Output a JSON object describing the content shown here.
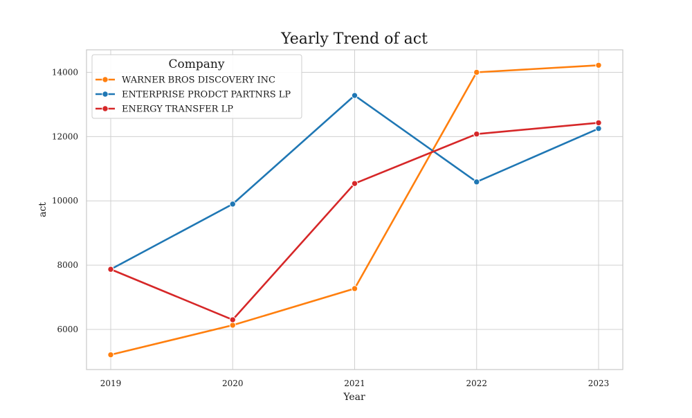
{
  "chart_data": {
    "type": "line",
    "title": "Yearly Trend of act",
    "xlabel": "Year",
    "ylabel": "act",
    "x": [
      "2019",
      "2020",
      "2021",
      "2022",
      "2023"
    ],
    "yticks": [
      6000,
      8000,
      10000,
      12000,
      14000
    ],
    "ylim": [
      4750,
      14700
    ],
    "grid": true,
    "legend": {
      "title": "Company",
      "placement": "top-left"
    },
    "series": [
      {
        "name": "WARNER BROS DISCOVERY INC",
        "color": "#ff7f0e",
        "values": [
          5210,
          6130,
          7270,
          14000,
          14220
        ]
      },
      {
        "name": "ENTERPRISE PRODCT PARTNRS LP",
        "color": "#1f77b4",
        "values": [
          7870,
          9900,
          13280,
          10590,
          12250
        ]
      },
      {
        "name": "ENERGY TRANSFER LP",
        "color": "#d62728",
        "values": [
          7870,
          6300,
          10540,
          12080,
          12430
        ]
      }
    ]
  }
}
